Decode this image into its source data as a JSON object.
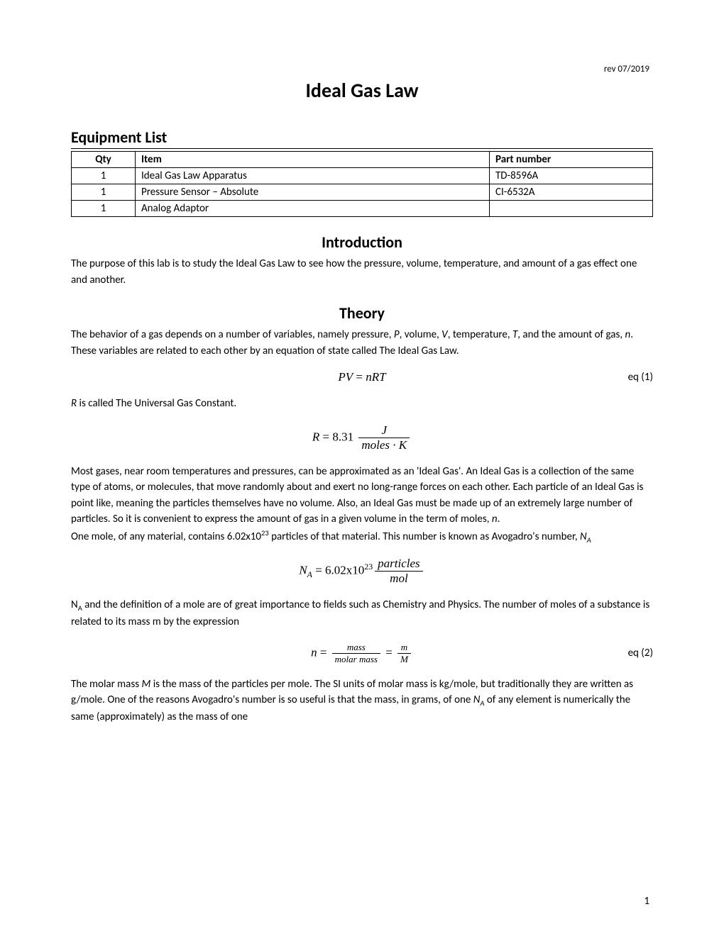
{
  "meta": {
    "revision": "rev 07/2019",
    "page_number": "1"
  },
  "title": "Ideal Gas Law",
  "equipment": {
    "heading": "Equipment List",
    "columns": [
      "Qty",
      "Item",
      "Part number"
    ],
    "rows": [
      [
        "1",
        "Ideal Gas Law Apparatus",
        "TD-8596A"
      ],
      [
        "1",
        "Pressure Sensor – Absolute",
        "CI-6532A"
      ],
      [
        "1",
        "Analog Adaptor",
        ""
      ]
    ]
  },
  "introduction": {
    "heading": "Introduction",
    "text": "The purpose of this lab is to study the Ideal Gas Law to see how the pressure, volume, temperature, and amount of a gas effect one and another."
  },
  "theory": {
    "heading": "Theory",
    "para1_a": "The behavior of a gas depends on a number of variables, namely pressure, ",
    "para1_b": ", volume, ",
    "para1_c": ", temperature, ",
    "para1_d": ", and the amount of gas, ",
    "para1_e": ". These variables are related to each other by an equation of state called The Ideal Gas Law.",
    "var_P": "P",
    "var_V": "V",
    "var_T": "T",
    "var_n": "n",
    "eq1": {
      "lhs": "PV",
      "eq": " = ",
      "rhs": "nRT",
      "label": "eq (1)"
    },
    "para2_a": "R",
    "para2_b": " is called The Universal Gas Constant.",
    "eq_R": {
      "lhs": "R",
      "eq": " = 8.31 ",
      "num": "J",
      "den": "moles · K"
    },
    "para3_a": "Most gases, near room temperatures and pressures, can be approximated as an 'Ideal Gas'. An Ideal Gas is a collection of the same type of atoms, or molecules, that move randomly about and exert no long-range forces on each other. Each particle of an Ideal Gas is point like, meaning the particles themselves have no volume. Also, an Ideal Gas must be made up of an extremely large number of particles. So it is convenient to express the amount of gas in a given volume in the term of moles, ",
    "para3_b": ".",
    "para4_a": "One mole, of any material, contains 6.02x10",
    "para4_sup": "23",
    "para4_b": " particles of that material. This number is known as Avogadro's number, ",
    "var_NA_N": "N",
    "var_NA_A": "A",
    "eq_NA": {
      "lhs_N": "N",
      "lhs_A": "A",
      "eq": " = 6.02x10",
      "exp": "23",
      "num": "particles",
      "den": "mol"
    },
    "para5_a": "N",
    "para5_sub": "A",
    "para5_b": " and the definition of a mole are of great importance to fields such as Chemistry and Physics. The number of moles of a substance is related to its mass m by the expression",
    "eq2": {
      "lhs": "n",
      "eq": " = ",
      "num1": "mass",
      "den1": "molar mass",
      "eq2": " = ",
      "num2": "m",
      "den2": "M",
      "label": "eq (2)"
    },
    "para6_a": "The molar mass ",
    "para6_M": "M",
    "para6_b": " is the mass of the particles per mole. The SI units of molar mass is kg/mole, but traditionally they are written as g/mole. One of the reasons Avogadro's number is so useful is that the mass, in grams, of one ",
    "para6_c": " of any element is numerically the same (approximately) as the mass of one"
  }
}
